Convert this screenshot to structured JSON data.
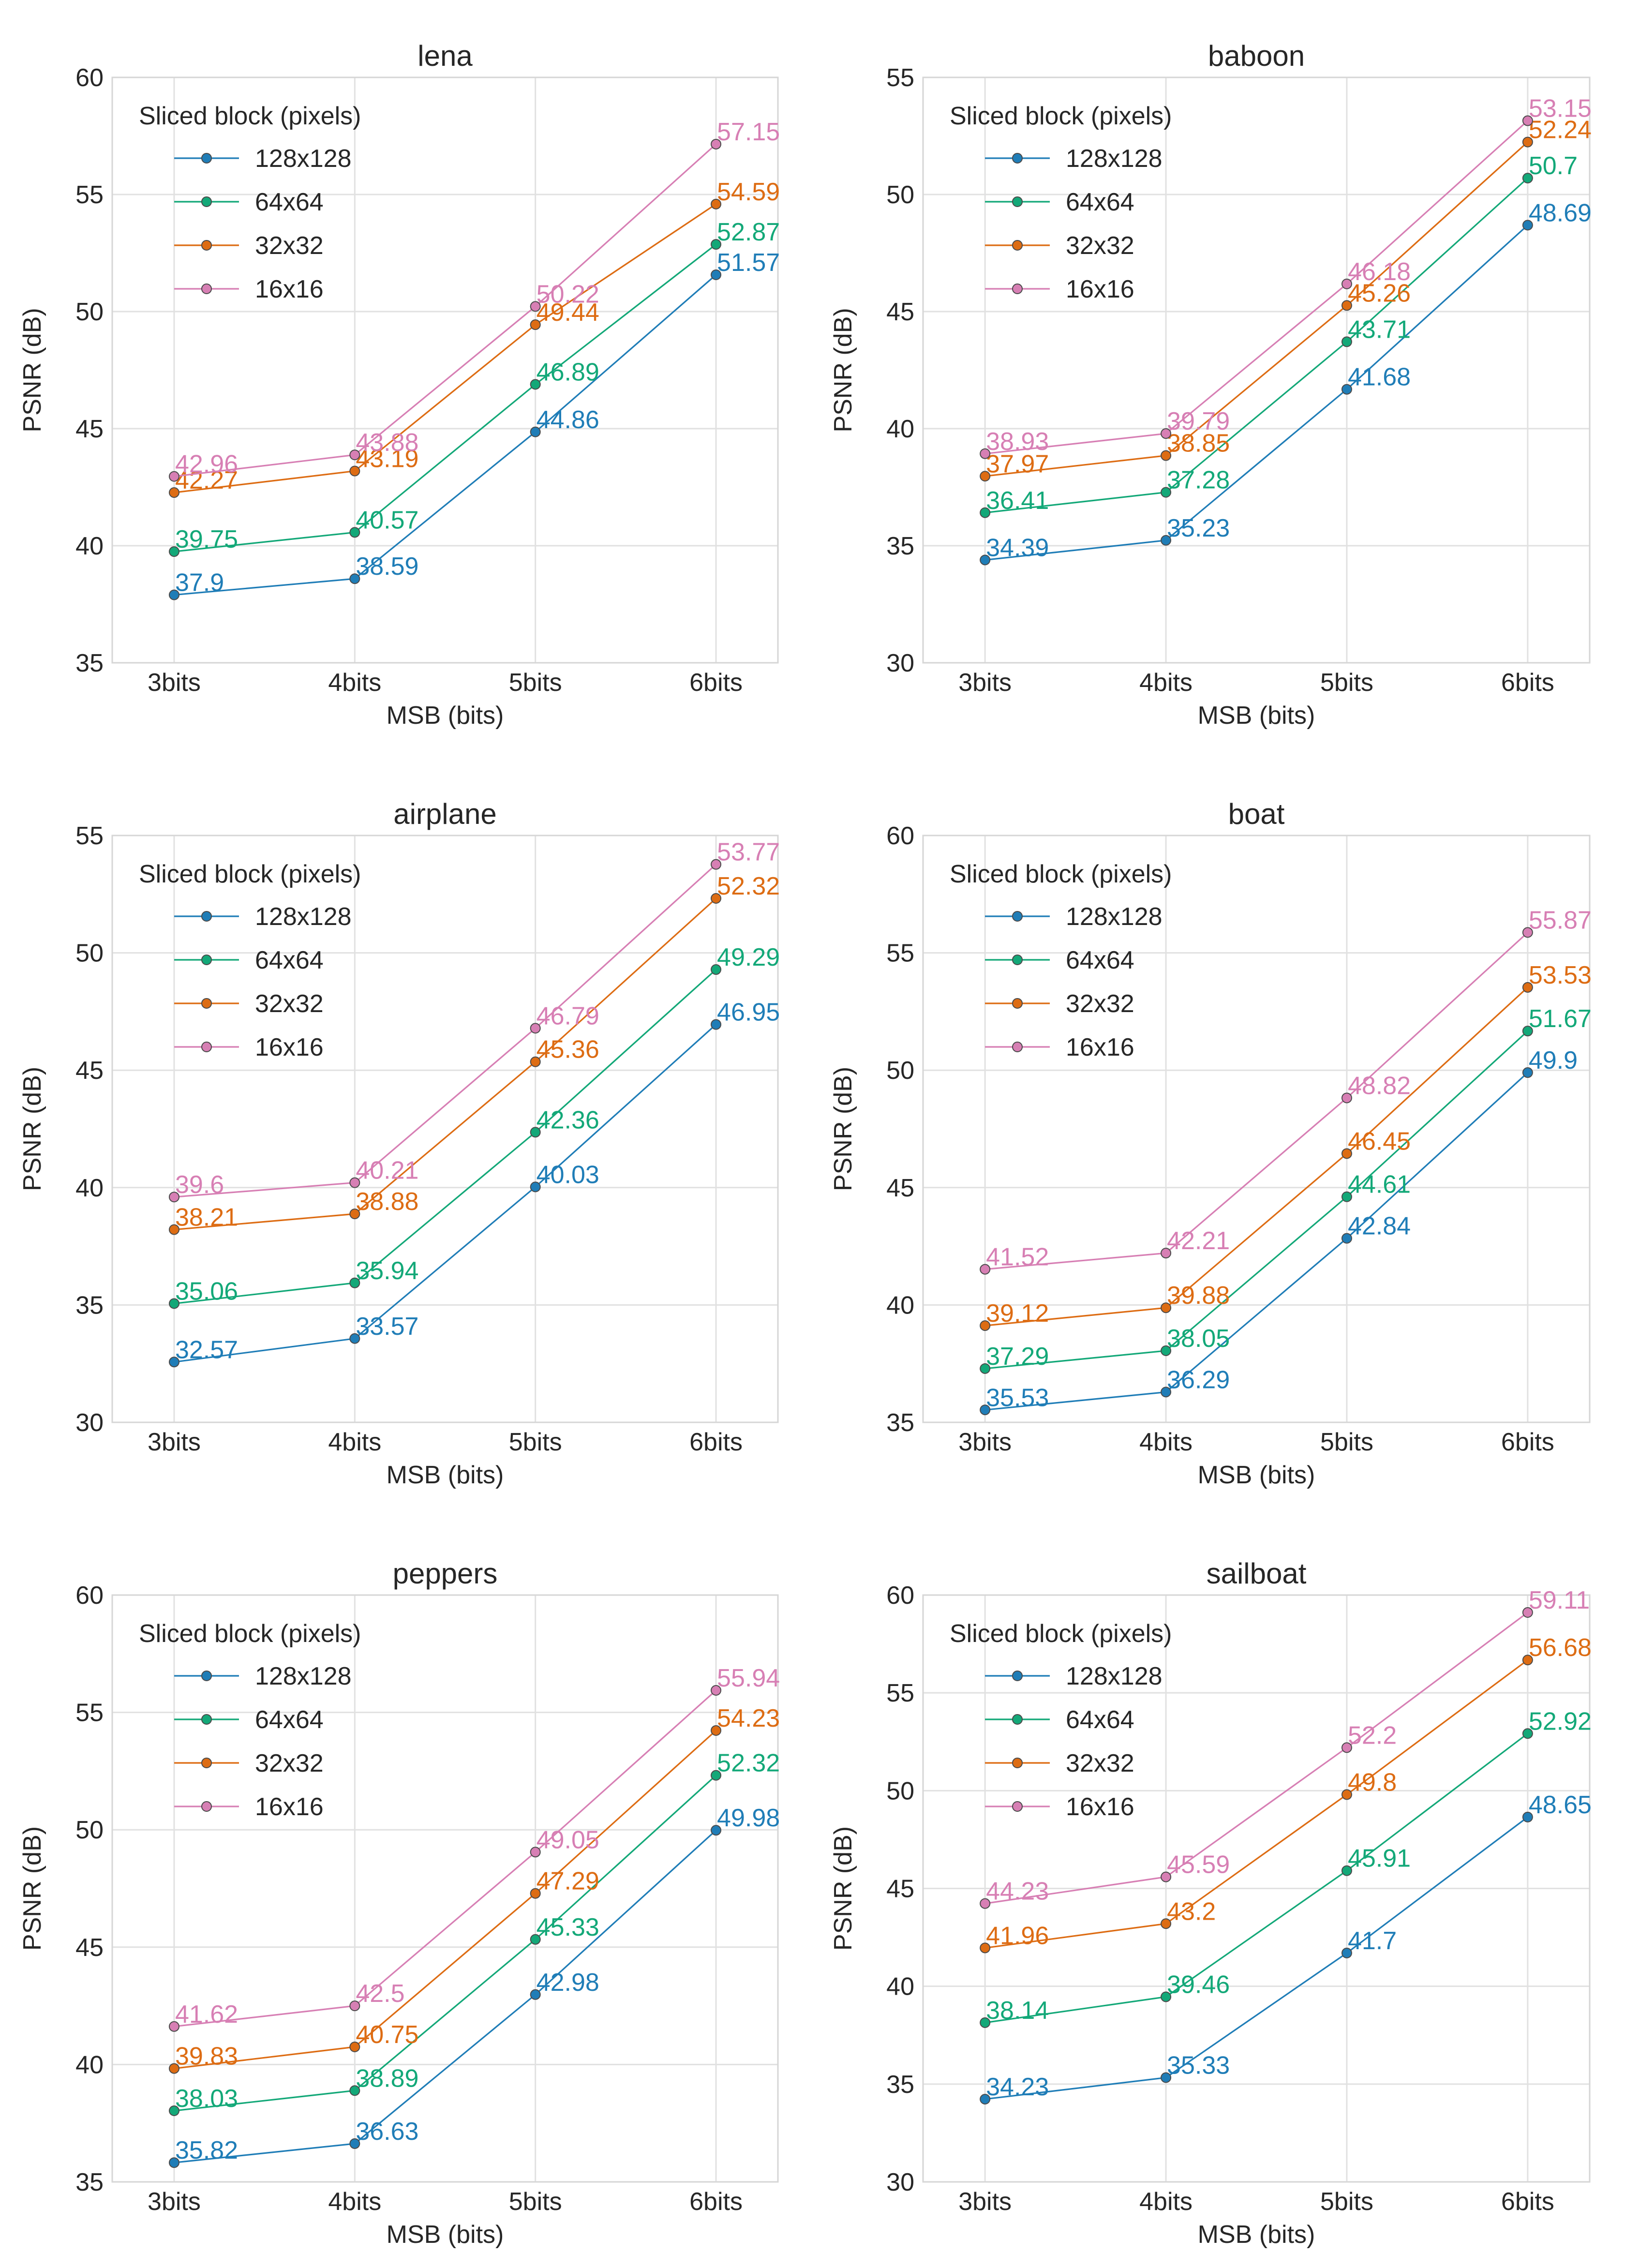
{
  "series_colors": [
    "#1f7db7",
    "#13a878",
    "#dd6c13",
    "#d77fb4"
  ],
  "chart_data": [
    {
      "type": "line",
      "title": "lena",
      "xlabel": "MSB (bits)",
      "ylabel": "PSNR (dB)",
      "categories": [
        "3bits",
        "4bits",
        "5bits",
        "6bits"
      ],
      "ylim": [
        35,
        60
      ],
      "yticks": [
        "35",
        "40",
        "45",
        "50",
        "55",
        "60"
      ],
      "legend_title": "Sliced block (pixels)",
      "legend_location": "upper-left",
      "series": [
        {
          "name": "128x128",
          "values": [
            37.9,
            38.59,
            44.86,
            51.57
          ],
          "labels": [
            "37.9",
            "38.59",
            "44.86",
            "51.57"
          ]
        },
        {
          "name": "64x64",
          "values": [
            39.75,
            40.57,
            46.89,
            52.87
          ],
          "labels": [
            "39.75",
            "40.57",
            "46.89",
            "52.87"
          ]
        },
        {
          "name": "32x32",
          "values": [
            42.27,
            43.19,
            49.44,
            54.59
          ],
          "labels": [
            "42.27",
            "43.19",
            "49.44",
            "54.59"
          ]
        },
        {
          "name": "16x16",
          "values": [
            42.96,
            43.88,
            50.22,
            57.15
          ],
          "labels": [
            "42.96",
            "43.88",
            "50.22",
            "57.15"
          ]
        }
      ]
    },
    {
      "type": "line",
      "title": "baboon",
      "xlabel": "MSB (bits)",
      "ylabel": "PSNR (dB)",
      "categories": [
        "3bits",
        "4bits",
        "5bits",
        "6bits"
      ],
      "ylim": [
        30,
        55
      ],
      "yticks": [
        "30",
        "35",
        "40",
        "45",
        "50",
        "55"
      ],
      "legend_title": "Sliced block (pixels)",
      "legend_location": "upper-left",
      "series": [
        {
          "name": "128x128",
          "values": [
            34.39,
            35.23,
            41.68,
            48.69
          ],
          "labels": [
            "34.39",
            "35.23",
            "41.68",
            "48.69"
          ]
        },
        {
          "name": "64x64",
          "values": [
            36.41,
            37.28,
            43.71,
            50.7
          ],
          "labels": [
            "36.41",
            "37.28",
            "43.71",
            "50.7"
          ]
        },
        {
          "name": "32x32",
          "values": [
            37.97,
            38.85,
            45.26,
            52.24
          ],
          "labels": [
            "37.97",
            "38.85",
            "45.26",
            "52.24"
          ]
        },
        {
          "name": "16x16",
          "values": [
            38.93,
            39.79,
            46.18,
            53.15
          ],
          "labels": [
            "38.93",
            "39.79",
            "46.18",
            "53.15"
          ]
        }
      ]
    },
    {
      "type": "line",
      "title": "airplane",
      "xlabel": "MSB (bits)",
      "ylabel": "PSNR (dB)",
      "categories": [
        "3bits",
        "4bits",
        "5bits",
        "6bits"
      ],
      "ylim": [
        30,
        55
      ],
      "yticks": [
        "30",
        "35",
        "40",
        "45",
        "50",
        "55"
      ],
      "legend_title": "Sliced block (pixels)",
      "legend_location": "upper-left",
      "series": [
        {
          "name": "128x128",
          "values": [
            32.57,
            33.57,
            40.03,
            46.95
          ],
          "labels": [
            "32.57",
            "33.57",
            "40.03",
            "46.95"
          ]
        },
        {
          "name": "64x64",
          "values": [
            35.06,
            35.94,
            42.36,
            49.29
          ],
          "labels": [
            "35.06",
            "35.94",
            "42.36",
            "49.29"
          ]
        },
        {
          "name": "32x32",
          "values": [
            38.21,
            38.88,
            45.36,
            52.32
          ],
          "labels": [
            "38.21",
            "38.88",
            "45.36",
            "52.32"
          ]
        },
        {
          "name": "16x16",
          "values": [
            39.6,
            40.21,
            46.79,
            53.77
          ],
          "labels": [
            "39.6",
            "40.21",
            "46.79",
            "53.77"
          ]
        }
      ]
    },
    {
      "type": "line",
      "title": "boat",
      "xlabel": "MSB (bits)",
      "ylabel": "PSNR (dB)",
      "categories": [
        "3bits",
        "4bits",
        "5bits",
        "6bits"
      ],
      "ylim": [
        35,
        60
      ],
      "yticks": [
        "35",
        "40",
        "45",
        "50",
        "55",
        "60"
      ],
      "legend_title": "Sliced block (pixels)",
      "legend_location": "upper-left",
      "series": [
        {
          "name": "128x128",
          "values": [
            35.53,
            36.29,
            42.84,
            49.9
          ],
          "labels": [
            "35.53",
            "36.29",
            "42.84",
            "49.9"
          ]
        },
        {
          "name": "64x64",
          "values": [
            37.29,
            38.05,
            44.61,
            51.67
          ],
          "labels": [
            "37.29",
            "38.05",
            "44.61",
            "51.67"
          ]
        },
        {
          "name": "32x32",
          "values": [
            39.12,
            39.88,
            46.45,
            53.53
          ],
          "labels": [
            "39.12",
            "39.88",
            "46.45",
            "53.53"
          ]
        },
        {
          "name": "16x16",
          "values": [
            41.52,
            42.21,
            48.82,
            55.87
          ],
          "labels": [
            "41.52",
            "42.21",
            "48.82",
            "55.87"
          ]
        }
      ]
    },
    {
      "type": "line",
      "title": "peppers",
      "xlabel": "MSB (bits)",
      "ylabel": "PSNR (dB)",
      "categories": [
        "3bits",
        "4bits",
        "5bits",
        "6bits"
      ],
      "ylim": [
        35,
        60
      ],
      "yticks": [
        "35",
        "40",
        "45",
        "50",
        "55",
        "60"
      ],
      "legend_title": "Sliced block (pixels)",
      "legend_location": "upper-left",
      "series": [
        {
          "name": "128x128",
          "values": [
            35.82,
            36.63,
            42.98,
            49.98
          ],
          "labels": [
            "35.82",
            "36.63",
            "42.98",
            "49.98"
          ]
        },
        {
          "name": "64x64",
          "values": [
            38.03,
            38.89,
            45.33,
            52.32
          ],
          "labels": [
            "38.03",
            "38.89",
            "45.33",
            "52.32"
          ]
        },
        {
          "name": "32x32",
          "values": [
            39.83,
            40.75,
            47.29,
            54.23
          ],
          "labels": [
            "39.83",
            "40.75",
            "47.29",
            "54.23"
          ]
        },
        {
          "name": "16x16",
          "values": [
            41.62,
            42.5,
            49.05,
            55.94
          ],
          "labels": [
            "41.62",
            "42.5",
            "49.05",
            "55.94"
          ]
        }
      ]
    },
    {
      "type": "line",
      "title": "sailboat",
      "xlabel": "MSB (bits)",
      "ylabel": "PSNR (dB)",
      "categories": [
        "3bits",
        "4bits",
        "5bits",
        "6bits"
      ],
      "ylim": [
        30,
        60
      ],
      "yticks": [
        "30",
        "35",
        "40",
        "45",
        "50",
        "55",
        "60"
      ],
      "legend_title": "Sliced block (pixels)",
      "legend_location": "upper-left",
      "series": [
        {
          "name": "128x128",
          "values": [
            34.23,
            35.33,
            41.7,
            48.65
          ],
          "labels": [
            "34.23",
            "35.33",
            "41.7",
            "48.65"
          ]
        },
        {
          "name": "64x64",
          "values": [
            38.14,
            39.46,
            45.91,
            52.92
          ],
          "labels": [
            "38.14",
            "39.46",
            "45.91",
            "52.92"
          ]
        },
        {
          "name": "32x32",
          "values": [
            41.96,
            43.2,
            49.8,
            56.68
          ],
          "labels": [
            "41.96",
            "43.2",
            "49.8",
            "56.68"
          ]
        },
        {
          "name": "16x16",
          "values": [
            44.23,
            45.59,
            52.2,
            59.11
          ],
          "labels": [
            "44.23",
            "45.59",
            "52.2",
            "59.11"
          ]
        }
      ]
    }
  ]
}
